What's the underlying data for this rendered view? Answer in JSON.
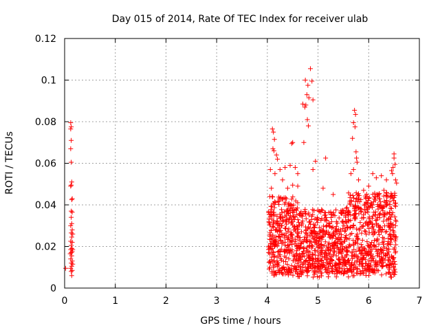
{
  "chart_data": {
    "type": "scatter",
    "title": "Day 015 of 2014, Rate Of TEC Index for receiver ulab",
    "xlabel": "GPS time / hours",
    "ylabel": "ROTI / TECUs",
    "xlim": [
      0,
      7
    ],
    "ylim": [
      0,
      0.12
    ],
    "xticks": [
      0,
      1,
      2,
      3,
      4,
      5,
      6,
      7
    ],
    "xtick_labels": [
      "0",
      "1",
      "2",
      "3",
      "4",
      "5",
      "6",
      "7"
    ],
    "yticks": [
      0,
      0.02,
      0.04,
      0.06,
      0.08,
      0.1,
      0.12
    ],
    "ytick_labels": [
      "0",
      "0.02",
      "0.04",
      "0.06",
      "0.08",
      "0.1",
      "0.12"
    ],
    "grid": true,
    "marker": "+",
    "color": "#ff0000",
    "series": [
      {
        "name": "ROTI",
        "points": [
          [
            0.02,
            0.0095
          ],
          [
            0.12,
            0.0795
          ],
          [
            0.12,
            0.0765
          ],
          [
            0.13,
            0.0775
          ],
          [
            0.13,
            0.071
          ],
          [
            0.12,
            0.067
          ],
          [
            0.13,
            0.0605
          ],
          [
            0.14,
            0.051
          ],
          [
            0.13,
            0.0495
          ],
          [
            0.12,
            0.049
          ],
          [
            0.14,
            0.0425
          ],
          [
            0.15,
            0.043
          ],
          [
            0.13,
            0.037
          ],
          [
            0.15,
            0.0365
          ],
          [
            0.13,
            0.034
          ],
          [
            0.14,
            0.031
          ],
          [
            0.12,
            0.03
          ],
          [
            0.15,
            0.028
          ],
          [
            0.13,
            0.0265
          ],
          [
            0.14,
            0.0245
          ],
          [
            0.12,
            0.0225
          ],
          [
            0.15,
            0.022
          ],
          [
            0.13,
            0.0205
          ],
          [
            0.14,
            0.019
          ],
          [
            0.12,
            0.0185
          ],
          [
            0.15,
            0.0175
          ],
          [
            0.13,
            0.017
          ],
          [
            0.14,
            0.0155
          ],
          [
            0.12,
            0.014
          ],
          [
            0.15,
            0.013
          ],
          [
            0.13,
            0.012
          ],
          [
            0.14,
            0.0105
          ],
          [
            0.12,
            0.0095
          ],
          [
            0.15,
            0.0085
          ],
          [
            0.13,
            0.008
          ],
          [
            0.14,
            0.006
          ],
          [
            0.16,
            0.0185
          ],
          [
            0.16,
            0.026
          ],
          [
            0.16,
            0.0115
          ],
          [
            0.11,
            0.0165
          ],
          [
            4.05,
            0.044
          ],
          [
            4.08,
            0.048
          ],
          [
            4.1,
            0.0765
          ],
          [
            4.12,
            0.075
          ],
          [
            4.14,
            0.0715
          ],
          [
            4.11,
            0.067
          ],
          [
            4.13,
            0.066
          ],
          [
            4.18,
            0.064
          ],
          [
            4.2,
            0.062
          ],
          [
            4.06,
            0.057
          ],
          [
            4.15,
            0.055
          ],
          [
            4.3,
            0.052
          ],
          [
            4.4,
            0.048
          ],
          [
            4.5,
            0.0495
          ],
          [
            4.48,
            0.0695
          ],
          [
            4.5,
            0.07
          ],
          [
            4.45,
            0.059
          ],
          [
            4.55,
            0.058
          ],
          [
            4.6,
            0.055
          ],
          [
            4.35,
            0.058
          ],
          [
            4.25,
            0.057
          ],
          [
            4.75,
            0.1
          ],
          [
            4.8,
            0.0975
          ],
          [
            4.78,
            0.093
          ],
          [
            4.82,
            0.0915
          ],
          [
            4.76,
            0.088
          ],
          [
            4.74,
            0.087
          ],
          [
            4.79,
            0.081
          ],
          [
            4.81,
            0.078
          ],
          [
            4.72,
            0.07
          ],
          [
            4.85,
            0.1055
          ],
          [
            4.88,
            0.0995
          ],
          [
            4.9,
            0.0905
          ],
          [
            4.7,
            0.0885
          ],
          [
            4.95,
            0.061
          ],
          [
            4.9,
            0.057
          ],
          [
            4.6,
            0.049
          ],
          [
            5.15,
            0.0625
          ],
          [
            5.3,
            0.045
          ],
          [
            5.1,
            0.048
          ],
          [
            5.72,
            0.0855
          ],
          [
            5.74,
            0.0835
          ],
          [
            5.7,
            0.0795
          ],
          [
            5.73,
            0.0775
          ],
          [
            5.68,
            0.072
          ],
          [
            5.75,
            0.0655
          ],
          [
            5.76,
            0.0625
          ],
          [
            5.77,
            0.0605
          ],
          [
            5.7,
            0.057
          ],
          [
            5.65,
            0.055
          ],
          [
            5.8,
            0.052
          ],
          [
            5.9,
            0.047
          ],
          [
            6.0,
            0.049
          ],
          [
            6.08,
            0.055
          ],
          [
            6.15,
            0.053
          ],
          [
            6.25,
            0.054
          ],
          [
            6.35,
            0.052
          ],
          [
            6.45,
            0.0565
          ],
          [
            6.48,
            0.058
          ],
          [
            6.5,
            0.0645
          ],
          [
            6.5,
            0.0625
          ],
          [
            6.52,
            0.0595
          ],
          [
            6.47,
            0.055
          ],
          [
            6.53,
            0.052
          ],
          [
            6.55,
            0.0505
          ],
          [
            6.5,
            0.0435
          ],
          [
            6.45,
            0.044
          ],
          [
            6.42,
            0.0415
          ],
          [
            6.3,
            0.047
          ],
          [
            6.2,
            0.045
          ]
        ]
      }
    ]
  }
}
